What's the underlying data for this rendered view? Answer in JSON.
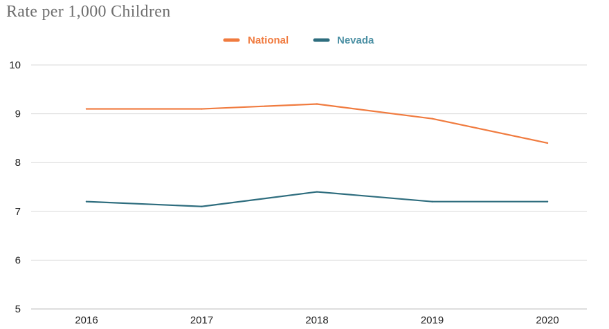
{
  "chart_data": {
    "type": "line",
    "title": "Rate per 1,000 Children",
    "x": [
      "2016",
      "2017",
      "2018",
      "2019",
      "2020"
    ],
    "series": [
      {
        "name": "National",
        "color": "#f07b3f",
        "values": [
          9.1,
          9.1,
          9.2,
          8.9,
          8.4
        ]
      },
      {
        "name": "Nevada",
        "color": "#2e6d7e",
        "values": [
          7.2,
          7.1,
          7.4,
          7.2,
          7.2
        ]
      }
    ],
    "ylim": [
      5,
      10
    ],
    "yticks": [
      "5",
      "6",
      "7",
      "8",
      "9",
      "10"
    ],
    "grid": true,
    "legend_position": "top-center",
    "legend_label_colors": {
      "National": "#f07b3f",
      "Nevada": "#4a8fa3"
    }
  }
}
